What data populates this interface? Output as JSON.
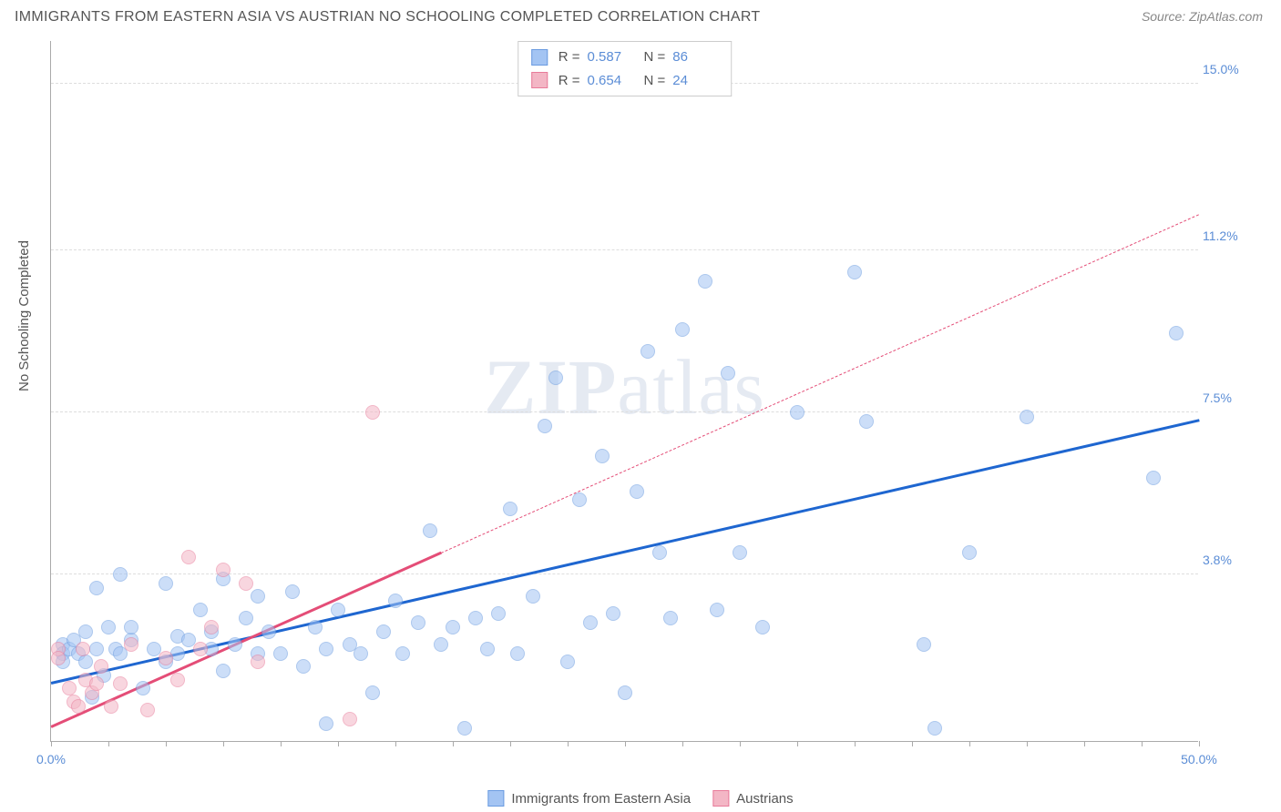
{
  "header": {
    "title": "IMMIGRANTS FROM EASTERN ASIA VS AUSTRIAN NO SCHOOLING COMPLETED CORRELATION CHART",
    "source": "Source: ZipAtlas.com"
  },
  "chart": {
    "type": "scatter",
    "y_axis_label": "No Schooling Completed",
    "watermark": "ZIPatlas",
    "background_color": "#ffffff",
    "grid_color": "#dddddd",
    "axis_color": "#aaaaaa",
    "xlim": [
      0,
      50
    ],
    "ylim": [
      0,
      16
    ],
    "y_ticks": [
      {
        "value": 3.8,
        "label": "3.8%"
      },
      {
        "value": 7.5,
        "label": "7.5%"
      },
      {
        "value": 11.2,
        "label": "11.2%"
      },
      {
        "value": 15.0,
        "label": "15.0%"
      }
    ],
    "x_tick_values": [
      0,
      2.5,
      5,
      7.5,
      10,
      12.5,
      15,
      17.5,
      20,
      22.5,
      25,
      27.5,
      30,
      32.5,
      35,
      37.5,
      40,
      42.5,
      45,
      47.5,
      50
    ],
    "x_tick_labels": [
      {
        "value": 0,
        "label": "0.0%"
      },
      {
        "value": 50,
        "label": "50.0%"
      }
    ],
    "tick_label_color": "#5b8dd6",
    "tick_label_fontsize": 14,
    "series": [
      {
        "name": "Immigrants from Eastern Asia",
        "color_fill": "#a3c4f3",
        "color_stroke": "#6a9be0",
        "fill_opacity": 0.55,
        "marker_radius": 8,
        "r": 0.587,
        "n": 86,
        "trend": {
          "x1": 0,
          "y1": 1.3,
          "x2": 50,
          "y2": 7.3,
          "color": "#1e66d0",
          "solid_to_x": 50
        },
        "points": [
          [
            0.5,
            2.2
          ],
          [
            0.5,
            2.0
          ],
          [
            0.5,
            1.8
          ],
          [
            0.8,
            2.1
          ],
          [
            1.0,
            2.3
          ],
          [
            1.2,
            2.0
          ],
          [
            1.5,
            1.8
          ],
          [
            1.5,
            2.5
          ],
          [
            1.8,
            1.0
          ],
          [
            2.0,
            3.5
          ],
          [
            2.0,
            2.1
          ],
          [
            2.3,
            1.5
          ],
          [
            2.5,
            2.6
          ],
          [
            2.8,
            2.1
          ],
          [
            3.0,
            3.8
          ],
          [
            3.0,
            2.0
          ],
          [
            3.5,
            2.3
          ],
          [
            3.5,
            2.6
          ],
          [
            4.0,
            1.2
          ],
          [
            4.5,
            2.1
          ],
          [
            5.0,
            3.6
          ],
          [
            5.0,
            1.8
          ],
          [
            5.5,
            2.4
          ],
          [
            5.5,
            2.0
          ],
          [
            6.0,
            2.3
          ],
          [
            6.5,
            3.0
          ],
          [
            7.0,
            2.1
          ],
          [
            7.0,
            2.5
          ],
          [
            7.5,
            3.7
          ],
          [
            7.5,
            1.6
          ],
          [
            8.0,
            2.2
          ],
          [
            8.5,
            2.8
          ],
          [
            9.0,
            2.0
          ],
          [
            9.0,
            3.3
          ],
          [
            9.5,
            2.5
          ],
          [
            10.0,
            2.0
          ],
          [
            10.5,
            3.4
          ],
          [
            11.0,
            1.7
          ],
          [
            11.5,
            2.6
          ],
          [
            12.0,
            2.1
          ],
          [
            12.0,
            0.4
          ],
          [
            12.5,
            3.0
          ],
          [
            13.0,
            2.2
          ],
          [
            13.5,
            2.0
          ],
          [
            14.0,
            1.1
          ],
          [
            14.5,
            2.5
          ],
          [
            15.0,
            3.2
          ],
          [
            15.3,
            2.0
          ],
          [
            16.0,
            2.7
          ],
          [
            16.5,
            4.8
          ],
          [
            17.0,
            2.2
          ],
          [
            17.5,
            2.6
          ],
          [
            18.0,
            0.3
          ],
          [
            18.5,
            2.8
          ],
          [
            19.0,
            2.1
          ],
          [
            19.5,
            2.9
          ],
          [
            20.0,
            5.3
          ],
          [
            20.3,
            2.0
          ],
          [
            21.0,
            3.3
          ],
          [
            21.5,
            7.2
          ],
          [
            22.0,
            8.3
          ],
          [
            22.5,
            1.8
          ],
          [
            23.0,
            5.5
          ],
          [
            23.5,
            2.7
          ],
          [
            24.0,
            6.5
          ],
          [
            24.5,
            2.9
          ],
          [
            25.0,
            1.1
          ],
          [
            25.5,
            5.7
          ],
          [
            26.0,
            8.9
          ],
          [
            26.5,
            4.3
          ],
          [
            27.0,
            2.8
          ],
          [
            27.5,
            9.4
          ],
          [
            28.5,
            10.5
          ],
          [
            29.0,
            3.0
          ],
          [
            29.5,
            8.4
          ],
          [
            30.0,
            4.3
          ],
          [
            31.0,
            2.6
          ],
          [
            32.5,
            7.5
          ],
          [
            35.0,
            10.7
          ],
          [
            35.5,
            7.3
          ],
          [
            38.0,
            2.2
          ],
          [
            38.5,
            0.3
          ],
          [
            40.0,
            4.3
          ],
          [
            42.5,
            7.4
          ],
          [
            48.0,
            6.0
          ],
          [
            49.0,
            9.3
          ]
        ]
      },
      {
        "name": "Austrians",
        "color_fill": "#f3b6c5",
        "color_stroke": "#e87b9a",
        "fill_opacity": 0.55,
        "marker_radius": 8,
        "r": 0.654,
        "n": 24,
        "trend": {
          "x1": 0,
          "y1": 0.3,
          "x2": 50,
          "y2": 12.0,
          "color": "#e44d77",
          "solid_to_x": 17
        },
        "points": [
          [
            0.3,
            2.1
          ],
          [
            0.3,
            1.9
          ],
          [
            0.8,
            1.2
          ],
          [
            1.0,
            0.9
          ],
          [
            1.2,
            0.8
          ],
          [
            1.4,
            2.1
          ],
          [
            1.5,
            1.4
          ],
          [
            1.8,
            1.1
          ],
          [
            2.0,
            1.3
          ],
          [
            2.2,
            1.7
          ],
          [
            2.6,
            0.8
          ],
          [
            3.0,
            1.3
          ],
          [
            3.5,
            2.2
          ],
          [
            4.2,
            0.7
          ],
          [
            5.0,
            1.9
          ],
          [
            5.5,
            1.4
          ],
          [
            6.0,
            4.2
          ],
          [
            6.5,
            2.1
          ],
          [
            7.0,
            2.6
          ],
          [
            7.5,
            3.9
          ],
          [
            8.5,
            3.6
          ],
          [
            9.0,
            1.8
          ],
          [
            13.0,
            0.5
          ],
          [
            14.0,
            7.5
          ]
        ]
      }
    ],
    "legend_bottom": [
      {
        "label": "Immigrants from Eastern Asia",
        "fill": "#a3c4f3",
        "stroke": "#6a9be0"
      },
      {
        "label": "Austrians",
        "fill": "#f3b6c5",
        "stroke": "#e87b9a"
      }
    ]
  }
}
